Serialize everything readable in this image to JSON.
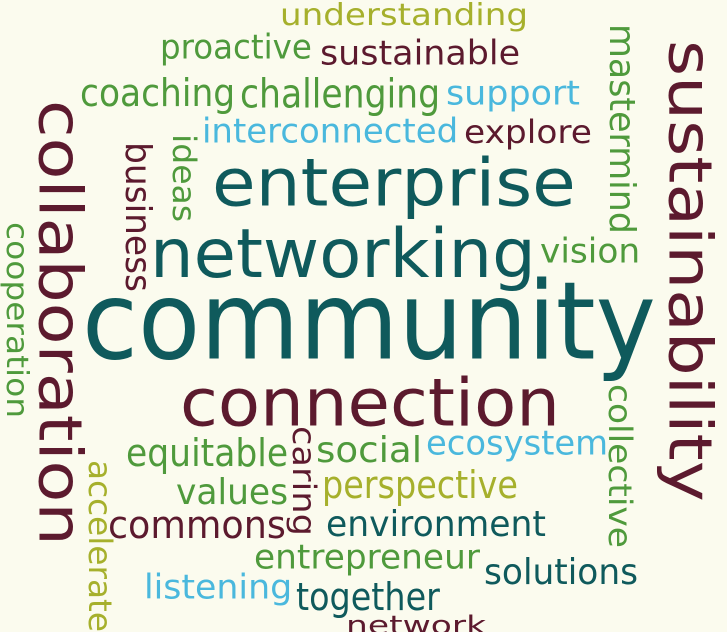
{
  "colors": {
    "background": "#fbfbee",
    "maroon": "#5c1a2e",
    "teal": "#0f5a5c",
    "green": "#4f9a3c",
    "olive": "#a6b02c",
    "sky": "#4ab8dd"
  },
  "words": [
    {
      "id": "understanding",
      "text": "understanding",
      "color": "olive"
    },
    {
      "id": "proactive",
      "text": "proactive",
      "color": "green"
    },
    {
      "id": "sustainable",
      "text": "sustainable",
      "color": "maroon"
    },
    {
      "id": "coaching",
      "text": "coaching",
      "color": "green"
    },
    {
      "id": "challenging",
      "text": "challenging",
      "color": "green"
    },
    {
      "id": "support",
      "text": "support",
      "color": "sky"
    },
    {
      "id": "interconnected",
      "text": "interconnected",
      "color": "sky"
    },
    {
      "id": "explore",
      "text": "explore",
      "color": "maroon"
    },
    {
      "id": "enterprise",
      "text": "enterprise",
      "color": "teal"
    },
    {
      "id": "networking",
      "text": "networking",
      "color": "teal"
    },
    {
      "id": "vision",
      "text": "vision",
      "color": "green"
    },
    {
      "id": "community",
      "text": "community",
      "color": "teal"
    },
    {
      "id": "connection",
      "text": "connection",
      "color": "maroon"
    },
    {
      "id": "equitable",
      "text": "equitable",
      "color": "green"
    },
    {
      "id": "social",
      "text": "social",
      "color": "green"
    },
    {
      "id": "ecosystem",
      "text": "ecosystem",
      "color": "sky"
    },
    {
      "id": "values",
      "text": "values",
      "color": "green"
    },
    {
      "id": "perspective",
      "text": "perspective",
      "color": "olive"
    },
    {
      "id": "commons",
      "text": "commons",
      "color": "maroon"
    },
    {
      "id": "environment",
      "text": "environment",
      "color": "teal"
    },
    {
      "id": "entrepreneur",
      "text": "entrepreneur",
      "color": "green"
    },
    {
      "id": "solutions",
      "text": "solutions",
      "color": "teal"
    },
    {
      "id": "listening",
      "text": "listening",
      "color": "sky"
    },
    {
      "id": "together",
      "text": "together",
      "color": "teal"
    },
    {
      "id": "network",
      "text": "network",
      "color": "maroon"
    },
    {
      "id": "collaboration",
      "text": "collaboration",
      "color": "maroon"
    },
    {
      "id": "cooperation",
      "text": "cooperation",
      "color": "green"
    },
    {
      "id": "business",
      "text": "business",
      "color": "maroon"
    },
    {
      "id": "ideas",
      "text": "ideas",
      "color": "green"
    },
    {
      "id": "accelerate",
      "text": "accelerate",
      "color": "olive"
    },
    {
      "id": "caring",
      "text": "caring",
      "color": "maroon"
    },
    {
      "id": "mastermind",
      "text": "mastermind",
      "color": "green"
    },
    {
      "id": "sustainability",
      "text": "sustainability",
      "color": "maroon"
    },
    {
      "id": "collective",
      "text": "collective",
      "color": "green"
    }
  ]
}
